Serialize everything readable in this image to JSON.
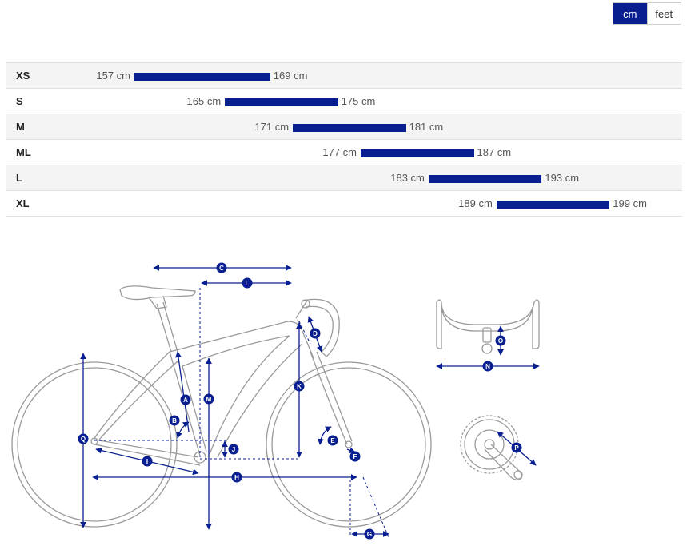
{
  "units": {
    "cm_label": "cm",
    "feet_label": "feet",
    "active": "cm"
  },
  "size_chart": {
    "rows": [
      {
        "size": "XS",
        "min": 157,
        "max": 169,
        "min_label": "157 cm",
        "max_label": "169 cm"
      },
      {
        "size": "S",
        "min": 165,
        "max": 175,
        "min_label": "165 cm",
        "max_label": "175 cm"
      },
      {
        "size": "M",
        "min": 171,
        "max": 181,
        "min_label": "171 cm",
        "max_label": "181 cm"
      },
      {
        "size": "ML",
        "min": 177,
        "max": 187,
        "min_label": "177 cm",
        "max_label": "187 cm"
      },
      {
        "size": "L",
        "min": 183,
        "max": 193,
        "min_label": "183 cm",
        "max_label": "193 cm"
      },
      {
        "size": "XL",
        "min": 189,
        "max": 199,
        "min_label": "189 cm",
        "max_label": "199 cm"
      }
    ],
    "bar_color": "#0a1f8f"
  },
  "geometry_labels": {
    "A": "A",
    "B": "B",
    "C": "C",
    "D": "D",
    "E": "E",
    "F": "F",
    "G": "G",
    "H": "H",
    "I": "I",
    "J": "J",
    "K": "K",
    "L": "L",
    "M": "M",
    "N": "N",
    "O": "O",
    "P": "P",
    "Q": "Q"
  },
  "colors": {
    "accent": "#0a1f8f",
    "bike_line": "#9a9a9a"
  }
}
